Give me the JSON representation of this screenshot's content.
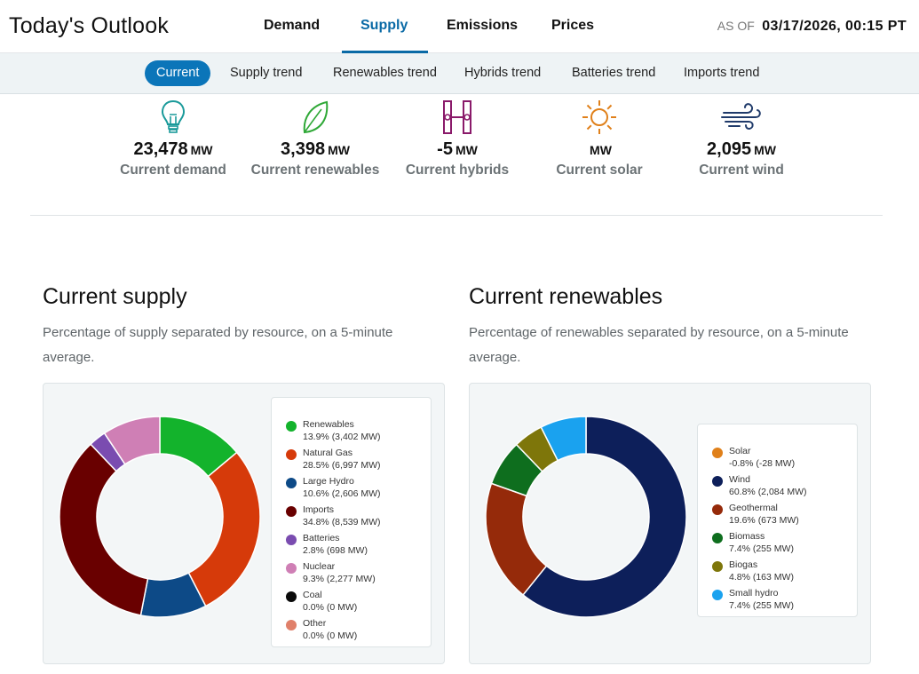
{
  "header": {
    "title": "Today's Outlook",
    "tabs": [
      {
        "label": "Demand"
      },
      {
        "label": "Supply"
      },
      {
        "label": "Emissions"
      },
      {
        "label": "Prices"
      }
    ],
    "active_tab": "Supply",
    "asof_label": "AS OF",
    "asof_value": "03/17/2026, 00:15 PT"
  },
  "subnav": {
    "items": [
      {
        "label": "Current"
      },
      {
        "label": "Supply trend"
      },
      {
        "label": "Renewables trend"
      },
      {
        "label": "Hybrids trend"
      },
      {
        "label": "Batteries trend"
      },
      {
        "label": "Imports trend"
      }
    ],
    "active": "Current"
  },
  "stats": [
    {
      "value": "23,478",
      "unit": "MW",
      "label": "Current demand",
      "icon": "lightbulb-icon",
      "color": "#1a9a9a"
    },
    {
      "value": "3,398",
      "unit": "MW",
      "label": "Current renewables",
      "icon": "leaf-icon",
      "color": "#2ea836"
    },
    {
      "value": "-5",
      "unit": "MW",
      "label": "Current hybrids",
      "icon": "hybrid-icon",
      "color": "#8a1a6a"
    },
    {
      "value": "",
      "unit": "MW",
      "label": "Current solar",
      "icon": "sun-icon",
      "color": "#e0801a"
    },
    {
      "value": "2,095",
      "unit": "MW",
      "label": "Current wind",
      "icon": "wind-icon",
      "color": "#1f3a6a"
    }
  ],
  "supply": {
    "title": "Current supply",
    "description": "Percentage of supply separated by resource, on a 5-minute average.",
    "legend": [
      {
        "name": "Renewables",
        "detail": "13.9% (3,402 MW)",
        "color": "#13b32c"
      },
      {
        "name": "Natural Gas",
        "detail": "28.5% (6,997 MW)",
        "color": "#d63a0a"
      },
      {
        "name": "Large Hydro",
        "detail": "10.6% (2,606 MW)",
        "color": "#0d4a87"
      },
      {
        "name": "Imports",
        "detail": "34.8% (8,539 MW)",
        "color": "#690000"
      },
      {
        "name": "Batteries",
        "detail": "2.8% (698 MW)",
        "color": "#7a4cb0"
      },
      {
        "name": "Nuclear",
        "detail": "9.3% (2,277 MW)",
        "color": "#cf7fb5"
      },
      {
        "name": "Coal",
        "detail": "0.0% (0 MW)",
        "color": "#0a0a0a"
      },
      {
        "name": "Other",
        "detail": "0.0% (0 MW)",
        "color": "#e0806a"
      }
    ]
  },
  "renewables": {
    "title": "Current renewables",
    "description": "Percentage of renewables separated by resource, on a 5-minute average.",
    "legend": [
      {
        "name": "Solar",
        "detail": "-0.8% (-28 MW)",
        "color": "#e0801a"
      },
      {
        "name": "Wind",
        "detail": "60.8% (2,084 MW)",
        "color": "#0d1f5a"
      },
      {
        "name": "Geothermal",
        "detail": "19.6% (673 MW)",
        "color": "#952a0a"
      },
      {
        "name": "Biomass",
        "detail": "7.4% (255 MW)",
        "color": "#0e6e1e"
      },
      {
        "name": "Biogas",
        "detail": "4.8% (163 MW)",
        "color": "#7e760a"
      },
      {
        "name": "Small hydro",
        "detail": "7.4% (255 MW)",
        "color": "#1aa2ef"
      }
    ]
  },
  "chart_data": [
    {
      "type": "pie",
      "title": "Current supply",
      "categories": [
        "Renewables",
        "Natural Gas",
        "Large Hydro",
        "Imports",
        "Batteries",
        "Nuclear",
        "Coal",
        "Other"
      ],
      "values": [
        13.9,
        28.5,
        10.6,
        34.8,
        2.8,
        9.3,
        0.0,
        0.0
      ],
      "colors": [
        "#13b32c",
        "#d63a0a",
        "#0d4a87",
        "#690000",
        "#7a4cb0",
        "#cf7fb5",
        "#0a0a0a",
        "#e0806a"
      ]
    },
    {
      "type": "pie",
      "title": "Current renewables",
      "categories": [
        "Wind",
        "Geothermal",
        "Biomass",
        "Biogas",
        "Small hydro"
      ],
      "values": [
        60.8,
        19.6,
        7.4,
        4.8,
        7.4
      ],
      "colors": [
        "#0d1f5a",
        "#952a0a",
        "#0e6e1e",
        "#7e760a",
        "#1aa2ef"
      ]
    }
  ]
}
